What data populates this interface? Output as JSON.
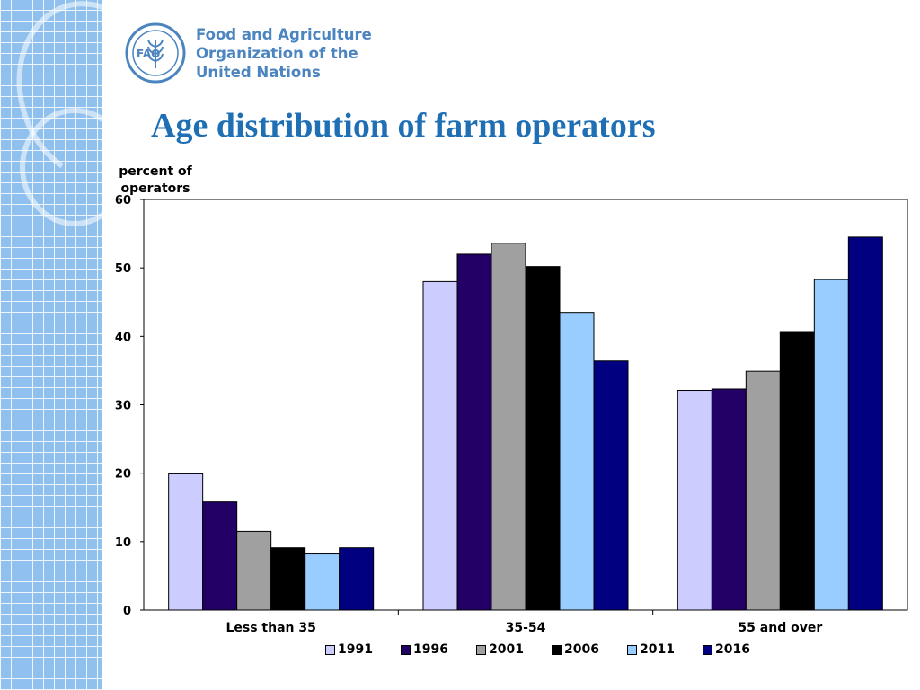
{
  "org": {
    "line1": "Food and Agriculture",
    "line2": "Organization of the",
    "line3": "United Nations",
    "logo_text": "FAO",
    "logo_motto": "FIAT PANIS"
  },
  "slide": {
    "title": "Age distribution of farm operators"
  },
  "colors": {
    "accent": "#1f6fb4",
    "series": [
      "#ccccff",
      "#220066",
      "#a0a0a0",
      "#000000",
      "#99ccff",
      "#000080"
    ]
  },
  "chart_data": {
    "type": "bar",
    "title": "Age distribution of farm operators",
    "ylabel": "percent of operators",
    "xlabel": "",
    "categories": [
      "Less than 35",
      "35-54",
      "55 and over"
    ],
    "series": [
      {
        "name": "1991",
        "values": [
          19.9,
          48.0,
          32.1
        ]
      },
      {
        "name": "1996",
        "values": [
          15.8,
          52.0,
          32.3
        ]
      },
      {
        "name": "2001",
        "values": [
          11.5,
          53.6,
          34.9
        ]
      },
      {
        "name": "2006",
        "values": [
          9.1,
          50.2,
          40.7
        ]
      },
      {
        "name": "2011",
        "values": [
          8.2,
          43.5,
          48.3
        ]
      },
      {
        "name": "2016",
        "values": [
          9.1,
          36.4,
          54.5
        ]
      }
    ],
    "ylim": [
      0,
      60
    ],
    "yticks": [
      "0",
      "10",
      "20",
      "30",
      "40",
      "50",
      "60"
    ],
    "grid": false,
    "legend": "bottom"
  }
}
